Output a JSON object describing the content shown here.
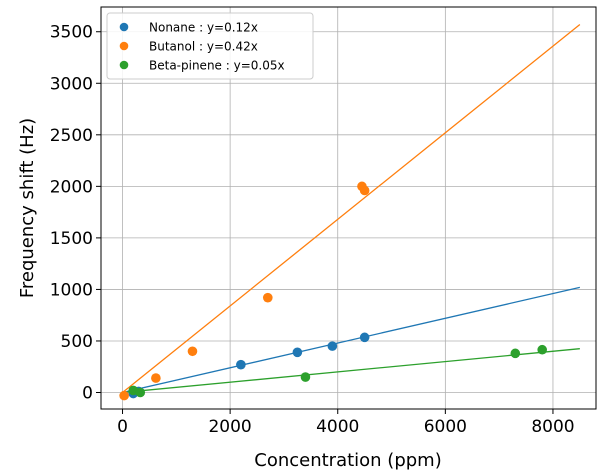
{
  "chart_data": {
    "type": "scatter",
    "xlabel": "Concentration (ppm)",
    "ylabel": "Frequency shift (Hz)",
    "xlim": [
      -400,
      8800
    ],
    "ylim": [
      -160,
      3740
    ],
    "xticks": [
      0,
      2000,
      4000,
      6000,
      8000
    ],
    "yticks": [
      0,
      500,
      1000,
      1500,
      2000,
      2500,
      3000,
      3500
    ],
    "grid": true,
    "legend_position": "top-left",
    "series": [
      {
        "name": "Nonane : y=0.12x",
        "color": "#1f77b4",
        "slope": 0.12,
        "fit_x": [
          0,
          8500
        ],
        "points": [
          [
            200,
            -10
          ],
          [
            300,
            10
          ],
          [
            2200,
            270
          ],
          [
            3250,
            390
          ],
          [
            3900,
            450
          ],
          [
            4500,
            535
          ]
        ]
      },
      {
        "name": "Butanol : y=0.42x",
        "color": "#ff7f0e",
        "slope": 0.42,
        "fit_x": [
          0,
          8500
        ],
        "points": [
          [
            30,
            -30
          ],
          [
            620,
            140
          ],
          [
            1300,
            400
          ],
          [
            2700,
            920
          ],
          [
            4450,
            2000
          ],
          [
            4500,
            1960
          ]
        ]
      },
      {
        "name": "Beta-pinene : y=0.05x",
        "color": "#2ca02c",
        "slope": 0.05,
        "fit_x": [
          0,
          8500
        ],
        "points": [
          [
            200,
            20
          ],
          [
            330,
            0
          ],
          [
            3400,
            150
          ],
          [
            7300,
            380
          ],
          [
            7800,
            415
          ]
        ]
      }
    ]
  }
}
